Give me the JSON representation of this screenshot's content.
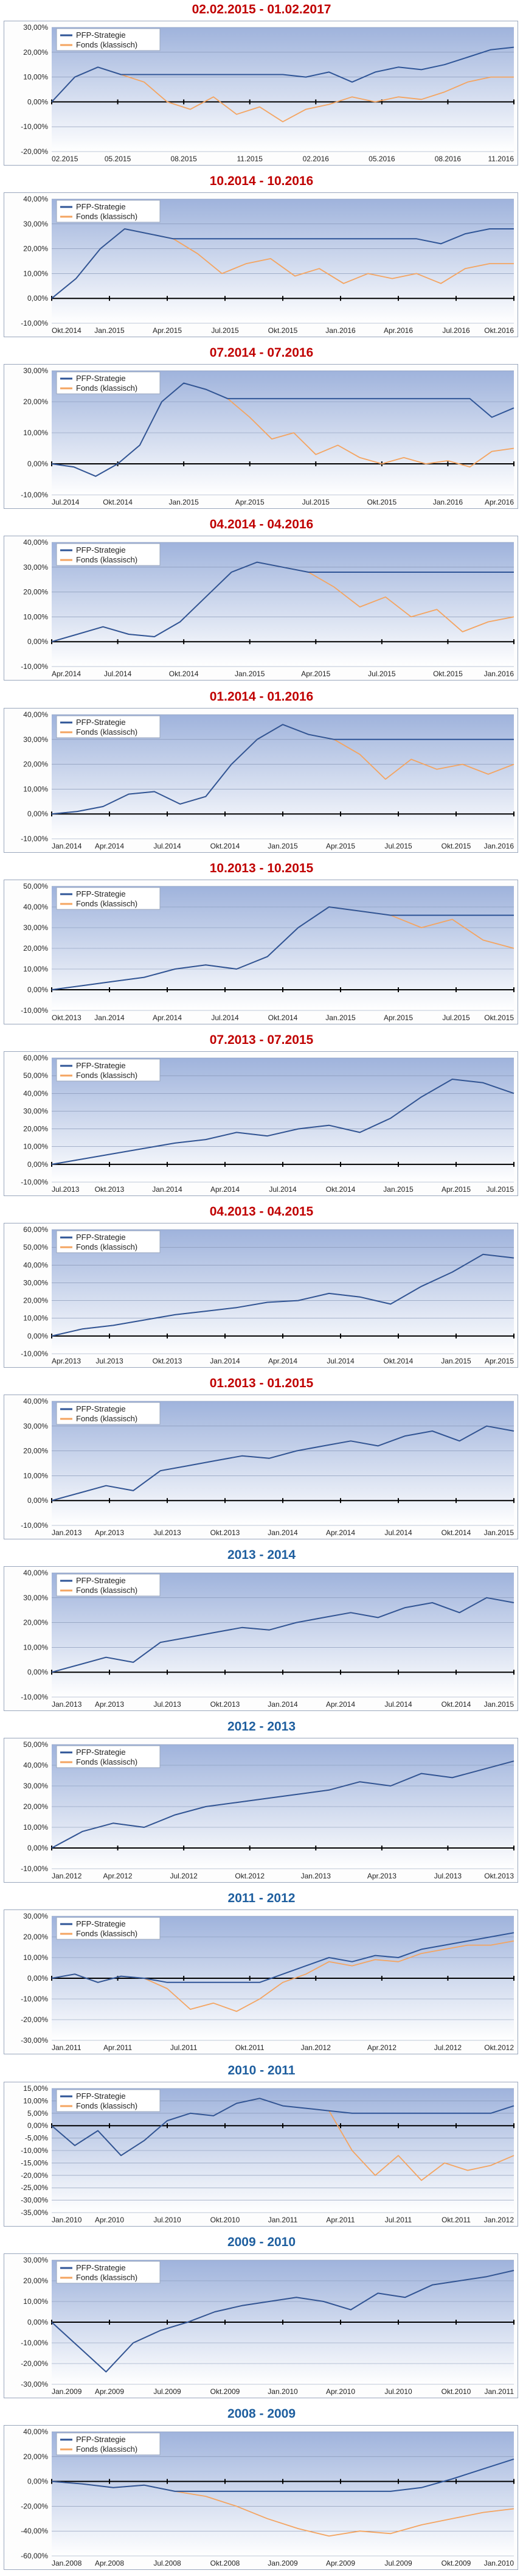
{
  "legend": {
    "strategy": "PFP-Strategie",
    "fund": "Fonds (klassisch)"
  },
  "colors": {
    "strategy": "#2f5597",
    "fund": "#f4a460",
    "title_red": "#c00000",
    "title_blue": "#1f5f9f"
  },
  "chart_data": [
    {
      "type": "line",
      "title": "02.02.2015 - 01.02.2017",
      "title_color": "red",
      "yticks": [
        "30,00%",
        "20,00%",
        "10,00%",
        "0,00%",
        "-10,00%",
        "-20,00%"
      ],
      "ylim": [
        -20,
        30
      ],
      "xticks": [
        "02.2015",
        "05.2015",
        "08.2015",
        "11.2015",
        "02.2016",
        "05.2016",
        "08.2016",
        "11.2016"
      ],
      "series": [
        {
          "name": "PFP-Strategie",
          "values": [
            0,
            10,
            14,
            11,
            11,
            11,
            11,
            11,
            11,
            11,
            11,
            10,
            12,
            8,
            12,
            14,
            13,
            15,
            18,
            21,
            22
          ]
        },
        {
          "name": "Fonds (klassisch)",
          "values": [
            0,
            10,
            14,
            11,
            8,
            0,
            -3,
            2,
            -5,
            -2,
            -8,
            -3,
            -1,
            2,
            0,
            2,
            1,
            4,
            8,
            10,
            10
          ]
        }
      ]
    },
    {
      "type": "line",
      "title": "10.2014 - 10.2016",
      "title_color": "red",
      "yticks": [
        "40,00%",
        "30,00%",
        "20,00%",
        "10,00%",
        "0,00%",
        "-10,00%"
      ],
      "ylim": [
        -10,
        40
      ],
      "xticks": [
        "Okt.2014",
        "Jan.2015",
        "Apr.2015",
        "Jul.2015",
        "Okt.2015",
        "Jan.2016",
        "Apr.2016",
        "Jul.2016",
        "Okt.2016"
      ],
      "series": [
        {
          "name": "PFP-Strategie",
          "values": [
            0,
            8,
            20,
            28,
            26,
            24,
            24,
            24,
            24,
            24,
            24,
            24,
            24,
            24,
            24,
            24,
            22,
            26,
            28,
            28
          ]
        },
        {
          "name": "Fonds (klassisch)",
          "values": [
            0,
            8,
            20,
            28,
            26,
            24,
            18,
            10,
            14,
            16,
            9,
            12,
            6,
            10,
            8,
            10,
            6,
            12,
            14,
            14
          ]
        }
      ]
    },
    {
      "type": "line",
      "title": "07.2014 - 07.2016",
      "title_color": "red",
      "yticks": [
        "30,00%",
        "20,00%",
        "10,00%",
        "0,00%",
        "-10,00%"
      ],
      "ylim": [
        -10,
        30
      ],
      "xticks": [
        "Jul.2014",
        "Okt.2014",
        "Jan.2015",
        "Apr.2015",
        "Jul.2015",
        "Okt.2015",
        "Jan.2016",
        "Apr.2016"
      ],
      "series": [
        {
          "name": "PFP-Strategie",
          "values": [
            0,
            -1,
            -4,
            0,
            6,
            20,
            26,
            24,
            21,
            21,
            21,
            21,
            21,
            21,
            21,
            21,
            21,
            21,
            21,
            21,
            15,
            18
          ]
        },
        {
          "name": "Fonds (klassisch)",
          "values": [
            0,
            -1,
            -4,
            0,
            6,
            20,
            26,
            24,
            21,
            15,
            8,
            10,
            3,
            6,
            2,
            0,
            2,
            0,
            1,
            -1,
            4,
            5
          ]
        }
      ]
    },
    {
      "type": "line",
      "title": "04.2014 - 04.2016",
      "title_color": "red",
      "yticks": [
        "40,00%",
        "30,00%",
        "20,00%",
        "10,00%",
        "0,00%",
        "-10,00%"
      ],
      "ylim": [
        -10,
        40
      ],
      "xticks": [
        "Apr.2014",
        "Jul.2014",
        "Okt.2014",
        "Jan.2015",
        "Apr.2015",
        "Jul.2015",
        "Okt.2015",
        "Jan.2016"
      ],
      "series": [
        {
          "name": "PFP-Strategie",
          "values": [
            0,
            3,
            6,
            3,
            2,
            8,
            18,
            28,
            32,
            30,
            28,
            28,
            28,
            28,
            28,
            28,
            28,
            28,
            28
          ]
        },
        {
          "name": "Fonds (klassisch)",
          "values": [
            0,
            3,
            6,
            3,
            2,
            8,
            18,
            28,
            32,
            30,
            28,
            22,
            14,
            18,
            10,
            13,
            4,
            8,
            10
          ]
        }
      ]
    },
    {
      "type": "line",
      "title": "01.2014 - 01.2016",
      "title_color": "red",
      "yticks": [
        "40,00%",
        "30,00%",
        "20,00%",
        "10,00%",
        "0,00%",
        "-10,00%"
      ],
      "ylim": [
        -10,
        40
      ],
      "xticks": [
        "Jan.2014",
        "Apr.2014",
        "Jul.2014",
        "Okt.2014",
        "Jan.2015",
        "Apr.2015",
        "Jul.2015",
        "Okt.2015",
        "Jan.2016"
      ],
      "series": [
        {
          "name": "PFP-Strategie",
          "values": [
            0,
            1,
            3,
            8,
            9,
            4,
            7,
            20,
            30,
            36,
            32,
            30,
            30,
            30,
            30,
            30,
            30,
            30,
            30
          ]
        },
        {
          "name": "Fonds (klassisch)",
          "values": [
            0,
            1,
            3,
            8,
            9,
            4,
            7,
            20,
            30,
            36,
            32,
            30,
            24,
            14,
            22,
            18,
            20,
            16,
            20
          ]
        }
      ]
    },
    {
      "type": "line",
      "title": "10.2013 - 10.2015",
      "title_color": "red",
      "yticks": [
        "50,00%",
        "40,00%",
        "30,00%",
        "20,00%",
        "10,00%",
        "0,00%",
        "-10,00%"
      ],
      "ylim": [
        -10,
        50
      ],
      "xticks": [
        "Okt.2013",
        "Jan.2014",
        "Apr.2014",
        "Jul.2014",
        "Okt.2014",
        "Jan.2015",
        "Apr.2015",
        "Jul.2015",
        "Okt.2015"
      ],
      "series": [
        {
          "name": "PFP-Strategie",
          "values": [
            0,
            2,
            4,
            6,
            10,
            12,
            10,
            16,
            30,
            40,
            38,
            36,
            36,
            36,
            36,
            36
          ]
        },
        {
          "name": "Fonds (klassisch)",
          "values": [
            0,
            2,
            4,
            6,
            10,
            12,
            10,
            16,
            30,
            40,
            38,
            36,
            30,
            34,
            24,
            20
          ]
        }
      ]
    },
    {
      "type": "line",
      "title": "07.2013 - 07.2015",
      "title_color": "red",
      "yticks": [
        "60,00%",
        "50,00%",
        "40,00%",
        "30,00%",
        "20,00%",
        "10,00%",
        "0,00%",
        "-10,00%"
      ],
      "ylim": [
        -10,
        60
      ],
      "xticks": [
        "Jul.2013",
        "Okt.2013",
        "Jan.2014",
        "Apr.2014",
        "Jul.2014",
        "Okt.2014",
        "Jan.2015",
        "Apr.2015",
        "Jul.2015"
      ],
      "series": [
        {
          "name": "PFP-Strategie",
          "values": [
            0,
            3,
            6,
            9,
            12,
            14,
            18,
            16,
            20,
            22,
            18,
            26,
            38,
            48,
            46,
            40
          ]
        },
        {
          "name": "Fonds (klassisch)",
          "values": [
            0,
            3,
            6,
            9,
            12,
            14,
            18,
            16,
            20,
            22,
            18,
            26,
            38,
            48,
            46,
            40
          ]
        }
      ]
    },
    {
      "type": "line",
      "title": "04.2013 - 04.2015",
      "title_color": "red",
      "yticks": [
        "60,00%",
        "50,00%",
        "40,00%",
        "30,00%",
        "20,00%",
        "10,00%",
        "0,00%",
        "-10,00%"
      ],
      "ylim": [
        -10,
        60
      ],
      "xticks": [
        "Apr.2013",
        "Jul.2013",
        "Okt.2013",
        "Jan.2014",
        "Apr.2014",
        "Jul.2014",
        "Okt.2014",
        "Jan.2015",
        "Apr.2015"
      ],
      "series": [
        {
          "name": "PFP-Strategie",
          "values": [
            0,
            4,
            6,
            9,
            12,
            14,
            16,
            19,
            20,
            24,
            22,
            18,
            28,
            36,
            46,
            44
          ]
        },
        {
          "name": "Fonds (klassisch)",
          "values": [
            0,
            4,
            6,
            9,
            12,
            14,
            16,
            19,
            20,
            24,
            22,
            18,
            28,
            36,
            46,
            44
          ]
        }
      ]
    },
    {
      "type": "line",
      "title": "01.2013 - 01.2015",
      "title_color": "red",
      "yticks": [
        "40,00%",
        "30,00%",
        "20,00%",
        "10,00%",
        "0,00%",
        "-10,00%"
      ],
      "ylim": [
        -10,
        40
      ],
      "xticks": [
        "Jan.2013",
        "Apr.2013",
        "Jul.2013",
        "Okt.2013",
        "Jan.2014",
        "Apr.2014",
        "Jul.2014",
        "Okt.2014",
        "Jan.2015"
      ],
      "series": [
        {
          "name": "PFP-Strategie",
          "values": [
            0,
            3,
            6,
            4,
            12,
            14,
            16,
            18,
            17,
            20,
            22,
            24,
            22,
            26,
            28,
            24,
            30,
            28
          ]
        },
        {
          "name": "Fonds (klassisch)",
          "values": [
            0,
            3,
            6,
            4,
            12,
            14,
            16,
            18,
            17,
            20,
            22,
            24,
            22,
            26,
            28,
            24,
            30,
            28
          ]
        }
      ]
    },
    {
      "type": "line",
      "title": "2013 - 2014",
      "title_color": "blue",
      "yticks": [
        "40,00%",
        "30,00%",
        "20,00%",
        "10,00%",
        "0,00%",
        "-10,00%"
      ],
      "ylim": [
        -10,
        40
      ],
      "xticks": [
        "Jan.2013",
        "Apr.2013",
        "Jul.2013",
        "Okt.2013",
        "Jan.2014",
        "Apr.2014",
        "Jul.2014",
        "Okt.2014",
        "Jan.2015"
      ],
      "series": [
        {
          "name": "PFP-Strategie",
          "values": [
            0,
            3,
            6,
            4,
            12,
            14,
            16,
            18,
            17,
            20,
            22,
            24,
            22,
            26,
            28,
            24,
            30,
            28
          ]
        },
        {
          "name": "Fonds (klassisch)",
          "values": [
            0,
            3,
            6,
            4,
            12,
            14,
            16,
            18,
            17,
            20,
            22,
            24,
            22,
            26,
            28,
            24,
            30,
            28
          ]
        }
      ]
    },
    {
      "type": "line",
      "title": "2012 - 2013",
      "title_color": "blue",
      "yticks": [
        "50,00%",
        "40,00%",
        "30,00%",
        "20,00%",
        "10,00%",
        "0,00%",
        "-10,00%"
      ],
      "ylim": [
        -10,
        50
      ],
      "xticks": [
        "Jan.2012",
        "Apr.2012",
        "Jul.2012",
        "Okt.2012",
        "Jan.2013",
        "Apr.2013",
        "Jul.2013",
        "Okt.2013"
      ],
      "series": [
        {
          "name": "PFP-Strategie",
          "values": [
            0,
            8,
            12,
            10,
            16,
            20,
            22,
            24,
            26,
            28,
            32,
            30,
            36,
            34,
            38,
            42
          ]
        },
        {
          "name": "Fonds (klassisch)",
          "values": [
            0,
            8,
            12,
            10,
            16,
            20,
            22,
            24,
            26,
            28,
            32,
            30,
            36,
            34,
            38,
            42
          ]
        }
      ]
    },
    {
      "type": "line",
      "title": "2011 - 2012",
      "title_color": "blue",
      "yticks": [
        "30,00%",
        "20,00%",
        "10,00%",
        "0,00%",
        "-10,00%",
        "-20,00%",
        "-30,00%"
      ],
      "ylim": [
        -30,
        30
      ],
      "xticks": [
        "Jan.2011",
        "Apr.2011",
        "Jul.2011",
        "Okt.2011",
        "Jan.2012",
        "Apr.2012",
        "Jul.2012",
        "Okt.2012"
      ],
      "series": [
        {
          "name": "PFP-Strategie",
          "values": [
            0,
            2,
            -2,
            1,
            0,
            -2,
            -2,
            -2,
            -2,
            -2,
            2,
            6,
            10,
            8,
            11,
            10,
            14,
            16,
            18,
            20,
            22
          ]
        },
        {
          "name": "Fonds (klassisch)",
          "values": [
            0,
            2,
            -2,
            1,
            0,
            -5,
            -15,
            -12,
            -16,
            -10,
            -2,
            2,
            8,
            6,
            9,
            8,
            12,
            14,
            16,
            16,
            18
          ]
        }
      ]
    },
    {
      "type": "line",
      "title": "2010 - 2011",
      "title_color": "blue",
      "yticks": [
        "15,00%",
        "10,00%",
        "5,00%",
        "0,00%",
        "-5,00%",
        "-10,00%",
        "-15,00%",
        "-20,00%",
        "-25,00%",
        "-30,00%",
        "-35,00%"
      ],
      "ylim": [
        -35,
        15
      ],
      "xticks": [
        "Jan.2010",
        "Apr.2010",
        "Jul.2010",
        "Okt.2010",
        "Jan.2011",
        "Apr.2011",
        "Jul.2011",
        "Okt.2011",
        "Jan.2012"
      ],
      "series": [
        {
          "name": "PFP-Strategie",
          "values": [
            0,
            -8,
            -2,
            -12,
            -6,
            2,
            5,
            4,
            9,
            11,
            8,
            7,
            6,
            5,
            5,
            5,
            5,
            5,
            5,
            5,
            8
          ]
        },
        {
          "name": "Fonds (klassisch)",
          "values": [
            0,
            -8,
            -2,
            -12,
            -6,
            2,
            5,
            4,
            9,
            11,
            8,
            7,
            6,
            -10,
            -20,
            -12,
            -22,
            -15,
            -18,
            -16,
            -12
          ]
        }
      ]
    },
    {
      "type": "line",
      "title": "2009 - 2010",
      "title_color": "blue",
      "yticks": [
        "30,00%",
        "20,00%",
        "10,00%",
        "0,00%",
        "-10,00%",
        "-20,00%",
        "-30,00%"
      ],
      "ylim": [
        -30,
        30
      ],
      "xticks": [
        "Jan.2009",
        "Apr.2009",
        "Jul.2009",
        "Okt.2009",
        "Jan.2010",
        "Apr.2010",
        "Jul.2010",
        "Okt.2010",
        "Jan.2011"
      ],
      "series": [
        {
          "name": "PFP-Strategie",
          "values": [
            0,
            -12,
            -24,
            -10,
            -4,
            0,
            5,
            8,
            10,
            12,
            10,
            6,
            14,
            12,
            18,
            20,
            22,
            25
          ]
        },
        {
          "name": "Fonds (klassisch)",
          "values": [
            0,
            -12,
            -24,
            -10,
            -4,
            0,
            5,
            8,
            10,
            12,
            10,
            6,
            14,
            12,
            18,
            20,
            22,
            25
          ]
        }
      ]
    },
    {
      "type": "line",
      "title": "2008 - 2009",
      "title_color": "blue",
      "yticks": [
        "40,00%",
        "20,00%",
        "0,00%",
        "-20,00%",
        "-40,00%",
        "-60,00%"
      ],
      "ylim": [
        -60,
        40
      ],
      "xticks": [
        "Jan.2008",
        "Apr.2008",
        "Jul.2008",
        "Okt.2008",
        "Jan.2009",
        "Apr.2009",
        "Jul.2009",
        "Okt.2009",
        "Jan.2010"
      ],
      "series": [
        {
          "name": "PFP-Strategie",
          "values": [
            0,
            -2,
            -5,
            -3,
            -8,
            -8,
            -8,
            -8,
            -8,
            -8,
            -8,
            -8,
            -5,
            2,
            10,
            18
          ]
        },
        {
          "name": "Fonds (klassisch)",
          "values": [
            0,
            -2,
            -5,
            -3,
            -8,
            -12,
            -20,
            -30,
            -38,
            -44,
            -40,
            -42,
            -35,
            -30,
            -25,
            -22
          ]
        }
      ]
    }
  ]
}
